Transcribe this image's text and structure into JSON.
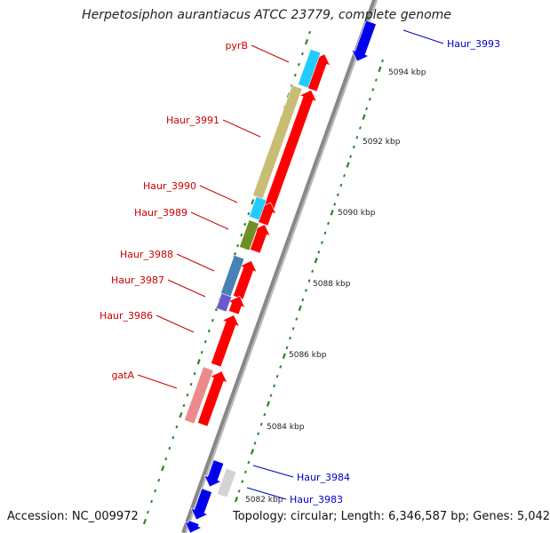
{
  "title": "Herpetosiphon aurantiacus ATCC 23779, complete genome",
  "accession": "Accession: NC_009972",
  "topology": "Topology: circular; Length: 6,346,587 bp; Genes: 5,042",
  "colors": {
    "forward": "#ff0000",
    "reverse": "#0000ee",
    "backbone": "#888888",
    "tick": "#228822",
    "label_forward": "#cc0000",
    "label_reverse": "#0000cc",
    "cyan": "#22ccff",
    "olive": "#c8bd74",
    "green": "#6f8f25",
    "steel": "#4682b4",
    "lavender": "#6a5acd",
    "pink": "#ec8b8b",
    "grey": "#d3d3d3"
  },
  "scale_labels": [
    "5094 kbp",
    "5092 kbp",
    "5090 kbp",
    "5088 kbp",
    "5086 kbp",
    "5084 kbp",
    "5082 kbp"
  ],
  "gene_labels": [
    {
      "text": "pyrB",
      "strand": "forward"
    },
    {
      "text": "Haur_3991",
      "strand": "forward"
    },
    {
      "text": "Haur_3990",
      "strand": "forward"
    },
    {
      "text": "Haur_3989",
      "strand": "forward"
    },
    {
      "text": "Haur_3988",
      "strand": "forward"
    },
    {
      "text": "Haur_3987",
      "strand": "forward"
    },
    {
      "text": "Haur_3986",
      "strand": "forward"
    },
    {
      "text": "gatA",
      "strand": "forward"
    },
    {
      "text": "Haur_3993",
      "strand": "reverse"
    },
    {
      "text": "Haur_3984",
      "strand": "reverse"
    },
    {
      "text": "Haur_3983",
      "strand": "reverse"
    }
  ]
}
